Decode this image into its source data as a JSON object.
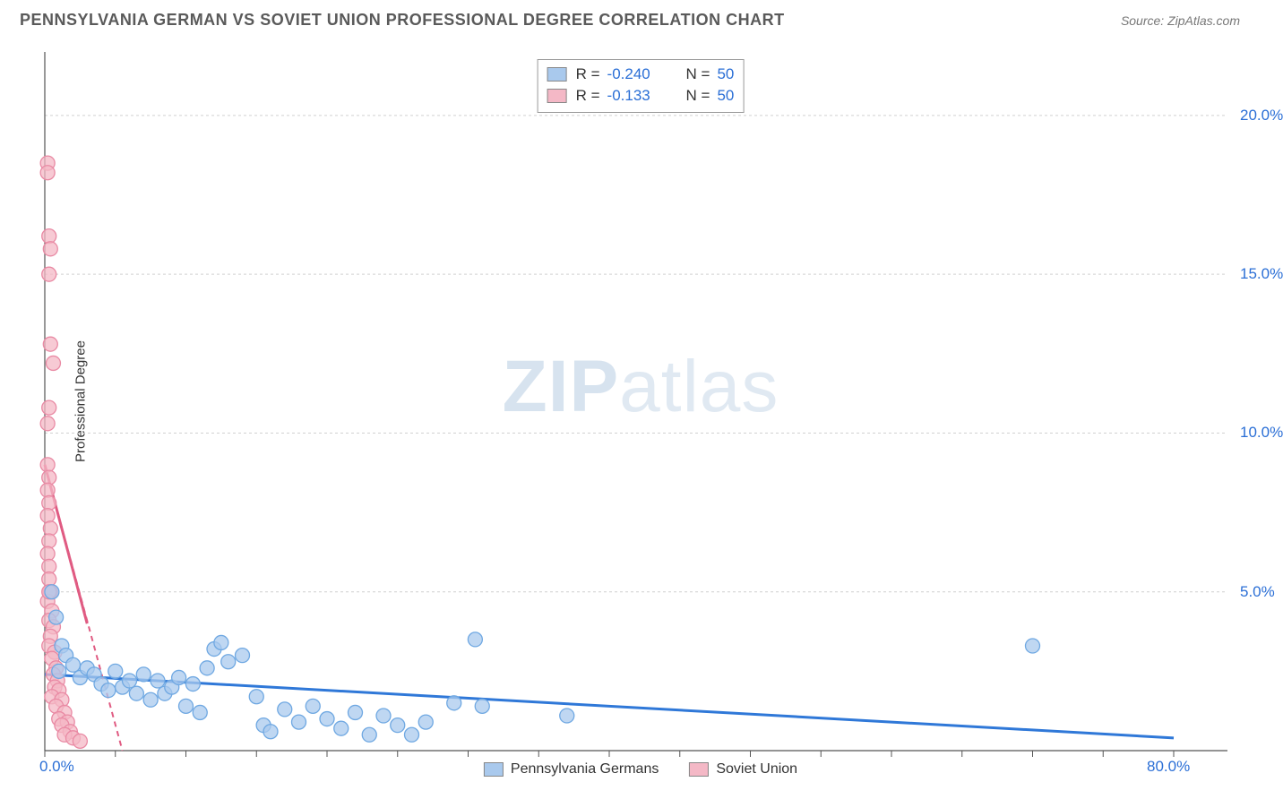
{
  "title": "PENNSYLVANIA GERMAN VS SOVIET UNION PROFESSIONAL DEGREE CORRELATION CHART",
  "source": "Source: ZipAtlas.com",
  "watermark": {
    "zip": "ZIP",
    "atlas": "atlas"
  },
  "y_axis_label": "Professional Degree",
  "chart": {
    "type": "scatter",
    "xlim": [
      0,
      80
    ],
    "ylim": [
      0,
      22
    ],
    "x_ticks": [
      0,
      80
    ],
    "x_tick_labels": [
      "0.0%",
      "80.0%"
    ],
    "x_minor_ticks": [
      5,
      10,
      15,
      20,
      25,
      30,
      35,
      40,
      45,
      50,
      55,
      60,
      65,
      70,
      75
    ],
    "y_ticks": [
      5,
      10,
      15,
      20
    ],
    "y_tick_labels": [
      "5.0%",
      "10.0%",
      "15.0%",
      "20.0%"
    ],
    "grid_color": "#d0d0d0",
    "grid_dash": "3,3",
    "axis_color": "#555555",
    "background_color": "#ffffff",
    "series": [
      {
        "name": "Pennsylvania Germans",
        "color_fill": "#a9c9ed",
        "color_stroke": "#6fa8e2",
        "marker_radius": 8,
        "marker_opacity": 0.75,
        "trend": {
          "x1": 0,
          "y1": 2.4,
          "x2": 80,
          "y2": 0.4,
          "color": "#2f78d8",
          "width": 3,
          "dash": "none"
        },
        "points": [
          [
            0.5,
            5.0
          ],
          [
            0.8,
            4.2
          ],
          [
            1.0,
            2.5
          ],
          [
            1.2,
            3.3
          ],
          [
            1.5,
            3.0
          ],
          [
            2.0,
            2.7
          ],
          [
            2.5,
            2.3
          ],
          [
            3.0,
            2.6
          ],
          [
            3.5,
            2.4
          ],
          [
            4.0,
            2.1
          ],
          [
            4.5,
            1.9
          ],
          [
            5.0,
            2.5
          ],
          [
            5.5,
            2.0
          ],
          [
            6.0,
            2.2
          ],
          [
            6.5,
            1.8
          ],
          [
            7.0,
            2.4
          ],
          [
            7.5,
            1.6
          ],
          [
            8.0,
            2.2
          ],
          [
            8.5,
            1.8
          ],
          [
            9.0,
            2.0
          ],
          [
            9.5,
            2.3
          ],
          [
            10.0,
            1.4
          ],
          [
            10.5,
            2.1
          ],
          [
            11.0,
            1.2
          ],
          [
            11.5,
            2.6
          ],
          [
            12.0,
            3.2
          ],
          [
            12.5,
            3.4
          ],
          [
            13.0,
            2.8
          ],
          [
            14.0,
            3.0
          ],
          [
            15.0,
            1.7
          ],
          [
            15.5,
            0.8
          ],
          [
            16.0,
            0.6
          ],
          [
            17.0,
            1.3
          ],
          [
            18.0,
            0.9
          ],
          [
            19.0,
            1.4
          ],
          [
            20.0,
            1.0
          ],
          [
            21.0,
            0.7
          ],
          [
            22.0,
            1.2
          ],
          [
            23.0,
            0.5
          ],
          [
            24.0,
            1.1
          ],
          [
            25.0,
            0.8
          ],
          [
            26.0,
            0.5
          ],
          [
            27.0,
            0.9
          ],
          [
            29.0,
            1.5
          ],
          [
            30.5,
            3.5
          ],
          [
            31.0,
            1.4
          ],
          [
            37.0,
            1.1
          ],
          [
            70.0,
            3.3
          ]
        ]
      },
      {
        "name": "Soviet Union",
        "color_fill": "#f4b8c6",
        "color_stroke": "#e98aa4",
        "marker_radius": 8,
        "marker_opacity": 0.75,
        "trend": {
          "x1": 0,
          "y1": 9.0,
          "x2": 5.5,
          "y2": 0,
          "color": "#e05b82",
          "width": 2,
          "dash": "6,5"
        },
        "trend_solid": {
          "x1": 0,
          "y1": 9.0,
          "x2": 3.0,
          "y2": 4.0,
          "color": "#e05b82",
          "width": 3
        },
        "points": [
          [
            0.2,
            18.5
          ],
          [
            0.2,
            18.2
          ],
          [
            0.3,
            16.2
          ],
          [
            0.4,
            15.8
          ],
          [
            0.3,
            15.0
          ],
          [
            0.4,
            12.8
          ],
          [
            0.6,
            12.2
          ],
          [
            0.3,
            10.8
          ],
          [
            0.2,
            10.3
          ],
          [
            0.2,
            9.0
          ],
          [
            0.3,
            8.6
          ],
          [
            0.2,
            8.2
          ],
          [
            0.3,
            7.8
          ],
          [
            0.2,
            7.4
          ],
          [
            0.4,
            7.0
          ],
          [
            0.3,
            6.6
          ],
          [
            0.2,
            6.2
          ],
          [
            0.3,
            5.8
          ],
          [
            0.3,
            5.4
          ],
          [
            0.4,
            5.0
          ],
          [
            0.2,
            4.7
          ],
          [
            0.5,
            4.4
          ],
          [
            0.3,
            4.1
          ],
          [
            0.6,
            3.9
          ],
          [
            0.4,
            3.6
          ],
          [
            0.3,
            3.3
          ],
          [
            0.7,
            3.1
          ],
          [
            0.5,
            2.9
          ],
          [
            0.8,
            2.6
          ],
          [
            0.6,
            2.4
          ],
          [
            0.9,
            2.2
          ],
          [
            0.7,
            2.0
          ],
          [
            1.0,
            1.9
          ],
          [
            0.5,
            1.7
          ],
          [
            1.2,
            1.6
          ],
          [
            0.8,
            1.4
          ],
          [
            1.4,
            1.2
          ],
          [
            1.0,
            1.0
          ],
          [
            1.6,
            0.9
          ],
          [
            1.2,
            0.8
          ],
          [
            1.8,
            0.6
          ],
          [
            1.4,
            0.5
          ],
          [
            2.0,
            0.4
          ],
          [
            2.5,
            0.3
          ],
          [
            0.3,
            5.0
          ]
        ]
      }
    ],
    "stats": [
      {
        "swatch": "#a9c9ed",
        "r_label": "R =",
        "r_value": "-0.240",
        "n_label": "N =",
        "n_value": "50"
      },
      {
        "swatch": "#f4b8c6",
        "r_label": "R =",
        "r_value": "-0.133",
        "n_label": "N =",
        "n_value": "50"
      }
    ],
    "bottom_legend": [
      {
        "swatch": "#a9c9ed",
        "label": "Pennsylvania Germans"
      },
      {
        "swatch": "#f4b8c6",
        "label": "Soviet Union"
      }
    ]
  }
}
